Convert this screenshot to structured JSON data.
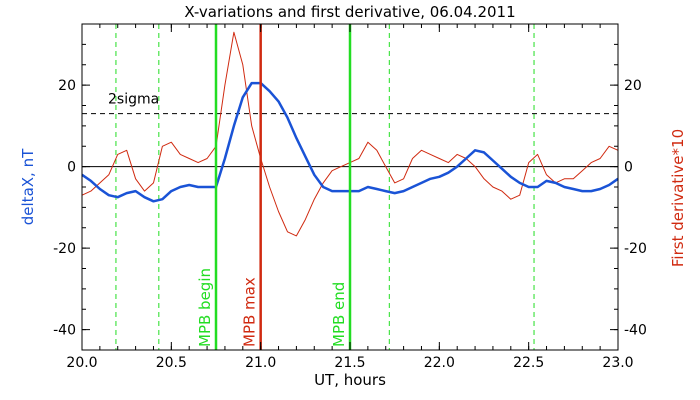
{
  "chart_data": {
    "type": "line",
    "title": "X-variations and first derivative, 06.04.2011",
    "xlabel": "UT, hours",
    "ylabel_left": "deltaX, nT",
    "ylabel_right": "First derivative*10",
    "xlim": [
      20.0,
      23.0
    ],
    "ylim": [
      -45,
      35
    ],
    "xticks": [
      "20.0",
      "20.5",
      "21.0",
      "21.5",
      "22.0",
      "22.5",
      "23.0"
    ],
    "xtick_values": [
      20.0,
      20.5,
      21.0,
      21.5,
      22.0,
      22.5,
      23.0
    ],
    "yticks": [
      "20",
      "0",
      "-20",
      "-40"
    ],
    "ytick_values": [
      20,
      0,
      -20,
      -40
    ],
    "yticks_right": [
      "20",
      "0",
      "-20",
      "-40"
    ],
    "sigma": {
      "label": "2sigma",
      "value": 13
    },
    "zero_line": 0,
    "colors": {
      "deltaX": "#1a53d6",
      "derivative": "#d02a10",
      "mpb": "#22dd22",
      "mpb_max": "#d02a10",
      "sigma": "#000000",
      "grid_dashed": "#22dd22"
    },
    "dashed_verticals": [
      20.19,
      20.43,
      21.72,
      22.53
    ],
    "markers": [
      {
        "label": "MPB begin",
        "x": 20.75,
        "color": "#22dd22"
      },
      {
        "label": "MPB max",
        "x": 21.0,
        "color": "#d02a10"
      },
      {
        "label": "MPB end",
        "x": 21.5,
        "color": "#22dd22"
      }
    ],
    "series": [
      {
        "key": "deltaX",
        "x": [
          20.0,
          20.05,
          20.1,
          20.15,
          20.2,
          20.25,
          20.3,
          20.35,
          20.4,
          20.45,
          20.5,
          20.55,
          20.6,
          20.65,
          20.7,
          20.75,
          20.8,
          20.85,
          20.9,
          20.95,
          21.0,
          21.05,
          21.1,
          21.15,
          21.2,
          21.25,
          21.3,
          21.35,
          21.4,
          21.45,
          21.5,
          21.55,
          21.6,
          21.65,
          21.7,
          21.75,
          21.8,
          21.85,
          21.9,
          21.95,
          22.0,
          22.05,
          22.1,
          22.15,
          22.2,
          22.25,
          22.3,
          22.35,
          22.4,
          22.45,
          22.5,
          22.55,
          22.6,
          22.65,
          22.7,
          22.75,
          22.8,
          22.85,
          22.9,
          22.95,
          23.0
        ],
        "values": [
          -2,
          -3.5,
          -5.5,
          -7,
          -7.5,
          -6.5,
          -6,
          -7.5,
          -8.5,
          -8,
          -6,
          -5,
          -4.5,
          -5,
          -5,
          -5,
          2,
          10,
          17,
          20.5,
          20.5,
          18.5,
          16,
          12,
          7,
          2.5,
          -2,
          -5,
          -6,
          -6,
          -6,
          -6,
          -5,
          -5.5,
          -6,
          -6.5,
          -6,
          -5,
          -4,
          -3,
          -2.5,
          -1.5,
          0,
          2,
          4,
          3.5,
          1.5,
          -0.5,
          -2.5,
          -4,
          -5,
          -5,
          -3.5,
          -4,
          -5,
          -5.5,
          -6,
          -6,
          -5.5,
          -4.5,
          -3
        ]
      },
      {
        "key": "derivative",
        "x": [
          20.0,
          20.05,
          20.1,
          20.15,
          20.2,
          20.25,
          20.3,
          20.35,
          20.4,
          20.45,
          20.5,
          20.55,
          20.6,
          20.65,
          20.7,
          20.75,
          20.8,
          20.85,
          20.9,
          20.95,
          21.0,
          21.05,
          21.1,
          21.15,
          21.2,
          21.25,
          21.3,
          21.35,
          21.4,
          21.45,
          21.5,
          21.55,
          21.6,
          21.65,
          21.7,
          21.75,
          21.8,
          21.85,
          21.9,
          21.95,
          22.0,
          22.05,
          22.1,
          22.15,
          22.2,
          22.25,
          22.3,
          22.35,
          22.4,
          22.45,
          22.5,
          22.55,
          22.6,
          22.65,
          22.7,
          22.75,
          22.8,
          22.85,
          22.9,
          22.95,
          23.0
        ],
        "values": [
          -7,
          -6,
          -4,
          -2,
          3,
          4,
          -3,
          -6,
          -4,
          5,
          6,
          3,
          2,
          1,
          2,
          5,
          20,
          33,
          25,
          10,
          2,
          -5,
          -11,
          -16,
          -17,
          -13,
          -8,
          -4,
          -1,
          0,
          1,
          2,
          6,
          4,
          0,
          -4,
          -3,
          2,
          4,
          3,
          2,
          1,
          3,
          2,
          0,
          -3,
          -5,
          -6,
          -8,
          -7,
          1,
          3,
          -2,
          -4,
          -3,
          -3,
          -1,
          1,
          2,
          5,
          4
        ]
      }
    ]
  }
}
